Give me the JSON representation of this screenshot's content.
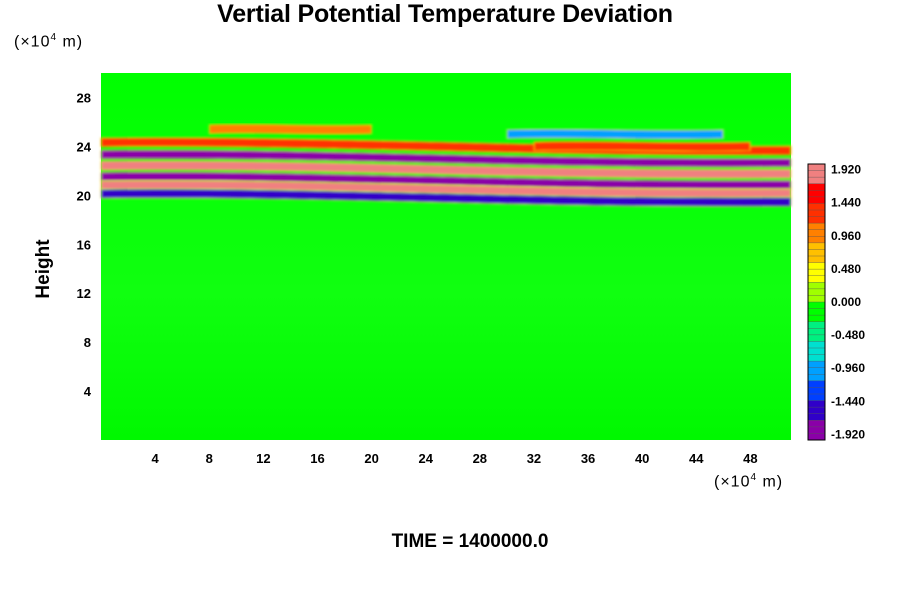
{
  "chart_data": {
    "type": "heatmap",
    "title": "Vertial Potential Temperature Deviation",
    "ylabel": "Height",
    "xunit_prefix": "(×10",
    "xunit_exp": "4",
    "xunit_suffix": " m)",
    "yunit_prefix": "(×10",
    "yunit_exp": "4",
    "yunit_suffix": " m)",
    "footer": "TIME = 1400000.0",
    "xlim": [
      0,
      51
    ],
    "ylim": [
      0,
      30
    ],
    "x_ticks": [
      4,
      8,
      12,
      16,
      20,
      24,
      28,
      32,
      36,
      40,
      44,
      48
    ],
    "y_ticks": [
      4,
      8,
      12,
      16,
      20,
      24,
      28
    ],
    "colorbar": {
      "range": [
        -2.0,
        2.0
      ],
      "tick_labels": [
        "1.920",
        "1.440",
        "0.960",
        "0.480",
        "0.000",
        "-0.480",
        "-0.960",
        "-1.440",
        "-1.920"
      ],
      "tick_values": [
        1.92,
        1.44,
        0.96,
        0.48,
        0.0,
        -0.48,
        -0.96,
        -1.44,
        -1.92
      ],
      "stops": [
        "#8a00a8",
        "#3000c8",
        "#0040ff",
        "#00a0ff",
        "#00e0d0",
        "#00f080",
        "#00ff00",
        "#a0ff00",
        "#ffff00",
        "#ffc000",
        "#ff8000",
        "#ff3000",
        "#ff0000",
        "#f08080"
      ]
    },
    "bands": [
      {
        "y": 24.0,
        "value": 1.2,
        "x_start": 0,
        "x_end": 51
      },
      {
        "y": 23.0,
        "value": -2.0,
        "x_start": 0,
        "x_end": 51
      },
      {
        "y": 22.1,
        "value": 2.0,
        "x_start": 0,
        "x_end": 51
      },
      {
        "y": 21.2,
        "value": -2.0,
        "x_start": 0,
        "x_end": 51
      },
      {
        "y": 20.5,
        "value": 2.0,
        "x_start": 0,
        "x_end": 51
      },
      {
        "y": 19.8,
        "value": -1.5,
        "x_start": 0,
        "x_end": 51
      },
      {
        "y": 25.4,
        "value": 1.0,
        "x_start": 8,
        "x_end": 20
      },
      {
        "y": 25.0,
        "value": -0.9,
        "x_start": 30,
        "x_end": 46
      },
      {
        "y": 24.0,
        "value": 1.3,
        "x_start": 32,
        "x_end": 48
      }
    ]
  }
}
